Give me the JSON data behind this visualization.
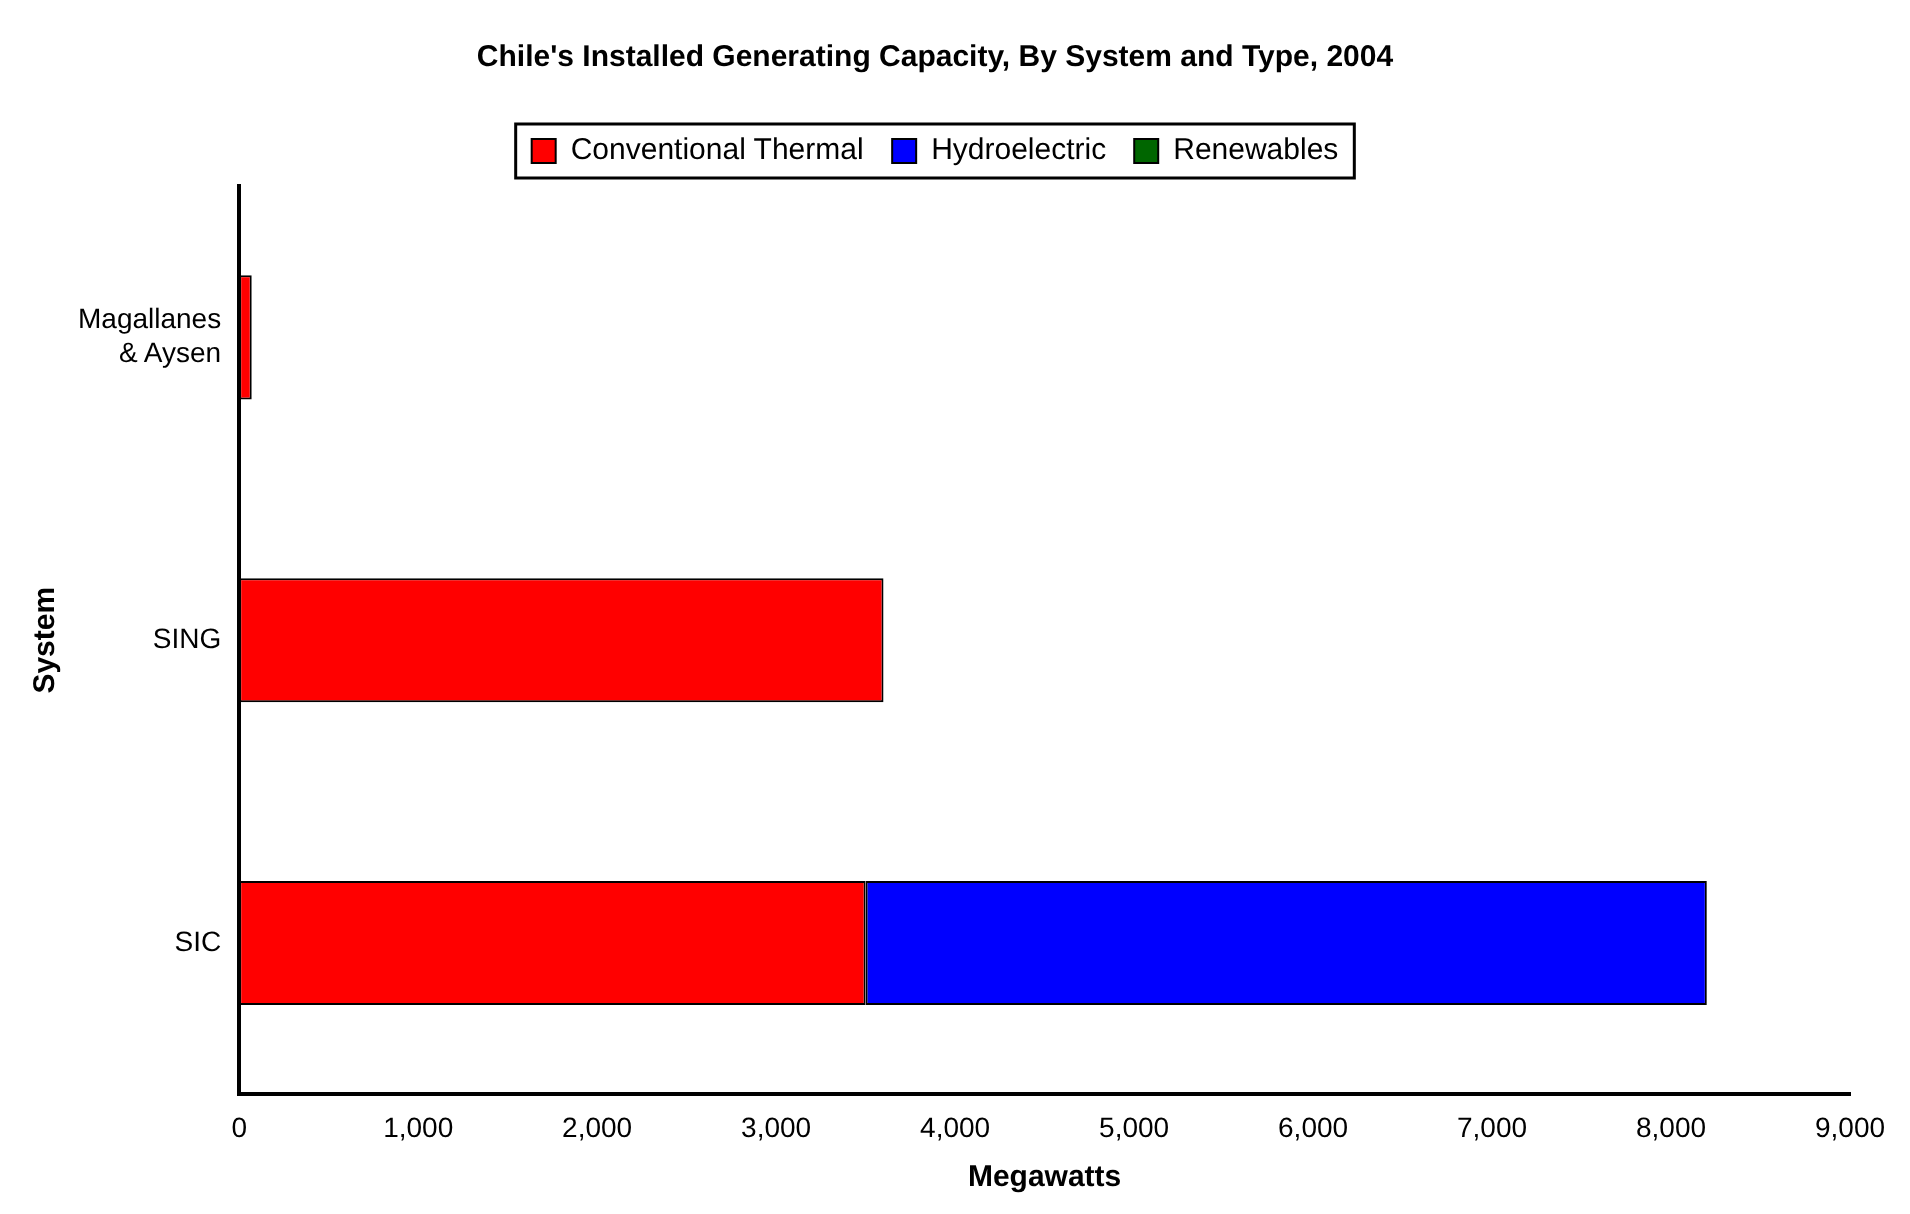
{
  "chart_data": {
    "type": "bar",
    "orientation": "horizontal",
    "stacked": true,
    "title": "Chile's Installed Generating Capacity, By System and Type, 2004",
    "xlabel": "Megawatts",
    "ylabel": "System",
    "categories": [
      "Magallanes & Aysen",
      "SING",
      "SIC"
    ],
    "series": [
      {
        "name": "Conventional Thermal",
        "color": "#ff0000",
        "values": [
          70,
          3600,
          3500
        ]
      },
      {
        "name": "Hydroelectric",
        "color": "#0000ff",
        "values": [
          0,
          0,
          4700
        ]
      },
      {
        "name": "Renewables",
        "color": "#006600",
        "values": [
          0,
          0,
          0
        ]
      }
    ],
    "xlim": [
      0,
      9000
    ],
    "xticks": [
      0,
      {
        "value": 1000,
        "label": "1,000"
      },
      {
        "value": 2000,
        "label": "2,000"
      },
      {
        "value": 3000,
        "label": "3,000"
      },
      {
        "value": 4000,
        "label": "4,000"
      },
      {
        "value": 5000,
        "label": "5,000"
      },
      {
        "value": 6000,
        "label": "6,000"
      },
      {
        "value": 7000,
        "label": "7,000"
      },
      {
        "value": 8000,
        "label": "8,000"
      },
      {
        "value": 9000,
        "label": "9,000"
      }
    ],
    "grid": false,
    "legend": "top"
  }
}
